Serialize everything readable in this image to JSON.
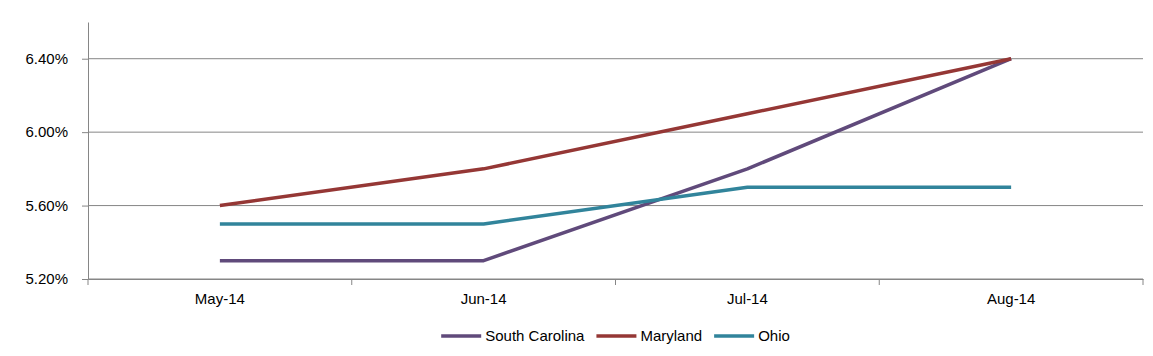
{
  "chart_data": {
    "type": "line",
    "categories": [
      "May-14",
      "Jun-14",
      "Jul-14",
      "Aug-14"
    ],
    "series": [
      {
        "name": "South Carolina",
        "color": "#604a7b",
        "values": [
          5.3,
          5.3,
          5.8,
          6.4
        ]
      },
      {
        "name": "Maryland",
        "color": "#953735",
        "values": [
          5.6,
          5.8,
          6.1,
          6.4
        ]
      },
      {
        "name": "Ohio",
        "color": "#31849b",
        "values": [
          5.5,
          5.5,
          5.7,
          5.7
        ]
      }
    ],
    "ylim": [
      5.2,
      6.6
    ],
    "yticks": [
      {
        "value": 5.2,
        "label": "5.20%"
      },
      {
        "value": 5.6,
        "label": "5.60%"
      },
      {
        "value": 6.0,
        "label": "6.00%"
      },
      {
        "value": 6.4,
        "label": "6.40%"
      }
    ],
    "grid": true,
    "legend": "bottom"
  }
}
